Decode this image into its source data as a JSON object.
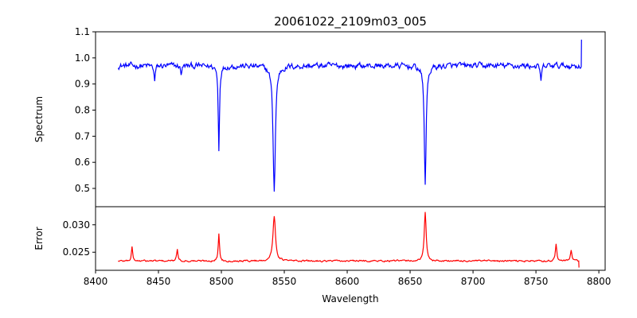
{
  "chart_data": {
    "type": "line",
    "title": "20061022_2109m03_005",
    "xlabel": "Wavelength",
    "xlim": [
      8400,
      8805
    ],
    "xticks": [
      8400,
      8450,
      8500,
      8550,
      8600,
      8650,
      8700,
      8750,
      8800
    ],
    "grid": false,
    "legend": "none",
    "panels": [
      {
        "name": "spectrum",
        "ylabel": "Spectrum",
        "ylim": [
          0.43,
          1.1
        ],
        "yticks": [
          0.5,
          0.6,
          0.7,
          0.8,
          0.9,
          1.0,
          1.1
        ],
        "ytick_labels": [
          "0.5",
          "0.6",
          "0.7",
          "0.8",
          "0.9",
          "1.0",
          "1.1"
        ],
        "color": "#0000ff",
        "baseline": 0.97,
        "noise": 0.022,
        "x_range": [
          8418,
          8786
        ],
        "end_value": 1.07,
        "features": [
          {
            "center": 8447,
            "depth": 0.06,
            "sigma": 0.6
          },
          {
            "center": 8468,
            "depth": 0.03,
            "sigma": 0.6
          },
          {
            "center": 8498,
            "depth": 0.32,
            "sigma": 0.6
          },
          {
            "center": 8542,
            "depth": 0.48,
            "sigma": 1.1
          },
          {
            "center": 8662,
            "depth": 0.45,
            "sigma": 0.9
          },
          {
            "center": 8754,
            "depth": 0.06,
            "sigma": 0.7
          }
        ]
      },
      {
        "name": "error",
        "ylabel": "Error",
        "ylim": [
          0.0217,
          0.0333
        ],
        "yticks": [
          0.025,
          0.03
        ],
        "ytick_labels": [
          "0.025",
          "0.030"
        ],
        "color": "#ff0000",
        "baseline": 0.0234,
        "noise": 0.0003,
        "x_range": [
          8418,
          8784
        ],
        "end_value": 0.0222,
        "features": [
          {
            "center": 8429,
            "depth": 0.0026,
            "sigma": 0.6
          },
          {
            "center": 8465,
            "depth": 0.0022,
            "sigma": 0.6
          },
          {
            "center": 8498,
            "depth": 0.005,
            "sigma": 0.6
          },
          {
            "center": 8542,
            "depth": 0.0083,
            "sigma": 1.2
          },
          {
            "center": 8662,
            "depth": 0.0088,
            "sigma": 0.9
          },
          {
            "center": 8766,
            "depth": 0.003,
            "sigma": 0.7
          },
          {
            "center": 8778,
            "depth": 0.002,
            "sigma": 0.7
          }
        ]
      }
    ]
  }
}
